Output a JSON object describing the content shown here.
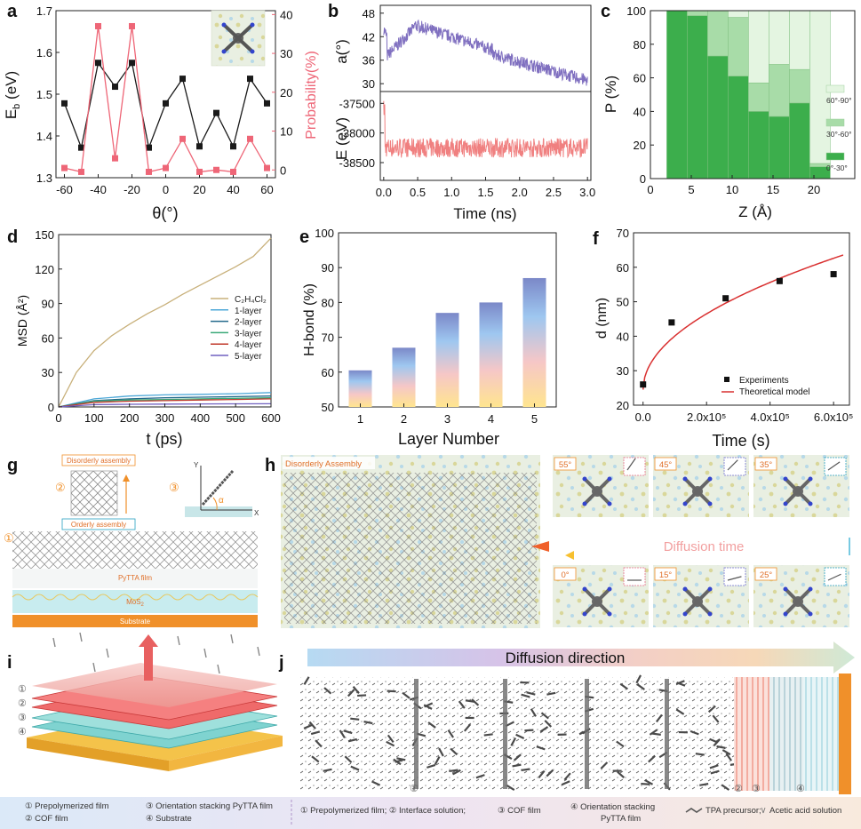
{
  "panel_labels": {
    "a": "a",
    "b": "b",
    "c": "c",
    "d": "d",
    "e": "e",
    "f": "f",
    "g": "g",
    "h": "h",
    "i": "i",
    "j": "j"
  },
  "colors": {
    "pink": "#ee6677",
    "violet": "#8070c0",
    "salmon": "#f08080",
    "green_dark": "#3cae4c",
    "green_mid": "#a8dca8",
    "green_light": "#e4f5e1",
    "orange": "#f0902a",
    "blue_box": "#26a0c0"
  },
  "chart_data": [
    {
      "id": "a",
      "type": "line",
      "xlabel": "θ(°)",
      "ylabel_left_base": "E",
      "ylabel_left_sub": "b",
      "ylabel_left_unit": " (eV)",
      "ylabel_right": "Probability(%)",
      "xlim": [
        -65,
        65
      ],
      "ylim": [
        1.3,
        1.7
      ],
      "y2lim": [
        -2,
        41
      ],
      "xticks": [
        "-60",
        "-40",
        "-20",
        "0",
        "20",
        "40",
        "60"
      ],
      "yticks": [
        "1.3",
        "1.4",
        "1.5",
        "1.6",
        "1.7"
      ],
      "y2ticks": [
        "0",
        "10",
        "20",
        "30",
        "40"
      ],
      "series": [
        {
          "name": "Eb",
          "axis": "left",
          "color": "#1a1a1a",
          "x": [
            -60,
            -50,
            -40,
            -30,
            -20,
            -10,
            0,
            10,
            20,
            30,
            40,
            50,
            60
          ],
          "y": [
            1.478,
            1.372,
            1.575,
            1.518,
            1.575,
            1.372,
            1.478,
            1.537,
            1.375,
            1.455,
            1.375,
            1.537,
            1.478
          ]
        },
        {
          "name": "Probability",
          "axis": "right",
          "color": "#ee6677",
          "x": [
            -60,
            -50,
            -40,
            -30,
            -20,
            -10,
            0,
            10,
            20,
            30,
            40,
            50,
            60
          ],
          "y": [
            0.5,
            -0.5,
            37,
            3,
            37,
            -0.5,
            0.5,
            8,
            -0.5,
            0,
            -0.5,
            8,
            0.5
          ]
        }
      ]
    },
    {
      "id": "b",
      "type": "line",
      "xlabel": "Time (ns)",
      "xlim": [
        -0.05,
        3.05
      ],
      "xticks": [
        "0.0",
        "0.5",
        "1.0",
        "1.5",
        "2.0",
        "2.5",
        "3.0"
      ],
      "top": {
        "ylabel": "a(°)",
        "ylim": [
          28,
          50
        ],
        "yticks": [
          "30",
          "36",
          "42",
          "48"
        ],
        "color": "#8070c0"
      },
      "bottom": {
        "ylabel": "E (eV)",
        "ylim": [
          -38800,
          -37300
        ],
        "yticks": [
          "-38500",
          "-38000",
          "-37500"
        ],
        "color": "#f08080"
      }
    },
    {
      "id": "c",
      "type": "bar",
      "xlabel": "Z (Å)",
      "ylabel": "P (%)",
      "xlim": [
        0,
        25
      ],
      "ylim": [
        0,
        100
      ],
      "xticks": [
        "0",
        "5",
        "10",
        "15",
        "20"
      ],
      "yticks": [
        "0",
        "20",
        "40",
        "60",
        "80",
        "100"
      ],
      "bins": [
        2,
        4.5,
        7,
        9.5,
        12,
        14.5,
        17,
        19.5
      ],
      "series": [
        {
          "name": "0°-30°",
          "values": [
            100,
            97,
            73,
            61,
            40,
            37,
            45,
            7
          ]
        },
        {
          "name": "30°-60°",
          "values": [
            0,
            3,
            27,
            35,
            17,
            31,
            20,
            2
          ]
        },
        {
          "name": "60°-90°",
          "values": [
            0,
            0,
            0,
            4,
            43,
            32,
            35,
            91
          ]
        }
      ],
      "legend": [
        "60°-90°",
        "30°-60°",
        "0°-30°"
      ]
    },
    {
      "id": "d",
      "type": "line",
      "xlabel": "t (ps)",
      "ylabel": "MSD (Å²)",
      "xlim": [
        0,
        600
      ],
      "ylim": [
        0,
        150
      ],
      "xticks": [
        "0",
        "100",
        "200",
        "300",
        "400",
        "500",
        "600"
      ],
      "yticks": [
        "0",
        "30",
        "60",
        "90",
        "120",
        "150"
      ],
      "series": [
        {
          "name": "C₂H₄Cl₂",
          "color": "#c8b07a",
          "x": [
            0,
            50,
            100,
            150,
            200,
            250,
            300,
            350,
            400,
            450,
            500,
            550,
            600
          ],
          "y": [
            0,
            30,
            49,
            62,
            72,
            81,
            89,
            98,
            106,
            114,
            122,
            131,
            147
          ]
        },
        {
          "name": "1-layer",
          "color": "#4ea8d8",
          "x": [
            0,
            100,
            200,
            300,
            400,
            500,
            600
          ],
          "y": [
            0,
            7,
            9.5,
            10.5,
            11,
            11.5,
            12.5
          ]
        },
        {
          "name": "2-layer",
          "color": "#246a8c",
          "x": [
            0,
            100,
            200,
            300,
            400,
            500,
            600
          ],
          "y": [
            0,
            5.5,
            7,
            8,
            8.5,
            9,
            9.5
          ]
        },
        {
          "name": "3-layer",
          "color": "#3aa878",
          "x": [
            0,
            100,
            200,
            300,
            400,
            500,
            600
          ],
          "y": [
            0,
            5,
            6,
            6.5,
            7,
            7.5,
            8
          ]
        },
        {
          "name": "4-layer",
          "color": "#c0392b",
          "x": [
            0,
            100,
            200,
            300,
            400,
            500,
            600
          ],
          "y": [
            0,
            4,
            5,
            5.5,
            6,
            6.5,
            7
          ]
        },
        {
          "name": "5-layer",
          "color": "#7060c0",
          "x": [
            0,
            100,
            200,
            300,
            400,
            500,
            600
          ],
          "y": [
            0,
            2,
            2.3,
            2.5,
            2.6,
            2.7,
            2.8
          ]
        }
      ]
    },
    {
      "id": "e",
      "type": "bar",
      "xlabel": "Layer Number",
      "ylabel": "H-bond (%)",
      "ylim": [
        50,
        100
      ],
      "categories": [
        "1",
        "2",
        "3",
        "4",
        "5"
      ],
      "values": [
        60.5,
        67,
        77,
        80,
        87
      ],
      "yticks": [
        "50",
        "60",
        "70",
        "80",
        "90",
        "100"
      ]
    },
    {
      "id": "f",
      "type": "scatter",
      "xlabel": "Time (s)",
      "ylabel": "d (nm)",
      "xlim": [
        -30000,
        650000
      ],
      "ylim": [
        20,
        70
      ],
      "xticks": [
        "0.0",
        "2.0x10⁵",
        "4.0x10⁵",
        "6.0x10⁵"
      ],
      "yticks": [
        "20",
        "30",
        "40",
        "50",
        "60",
        "70"
      ],
      "points": {
        "name": "Experiments",
        "x": [
          0,
          90000,
          260000,
          430000,
          600000
        ],
        "y": [
          26,
          44,
          51,
          56,
          58
        ]
      },
      "model": {
        "name": "Theoretical model",
        "y0": 24.5,
        "k": 0.0492,
        "x_end": 630000
      }
    }
  ],
  "panel_g": {
    "disorder": "Disorderly assembly",
    "order": "Orderly assembly",
    "n1": "①",
    "n2": "②",
    "n3": "③",
    "film": "PyTTA film",
    "mos2_base": "MoS",
    "mos2_sub": "2",
    "substrate": "Substrate",
    "axis_y": "Y",
    "axis_x": "X",
    "angle": "α"
  },
  "panel_h": {
    "disorder": "Disorderly Assembly",
    "diffusion": "Diffusion time",
    "angles_top": [
      "55°",
      "45°",
      "35°"
    ],
    "angles_bottom": [
      "0°",
      "15°",
      "25°"
    ]
  },
  "panel_i": {
    "nums": [
      "①",
      "②",
      "③",
      "④"
    ]
  },
  "panel_j": {
    "direction": "Diffusion direction",
    "markers": [
      "①",
      "②",
      "③",
      "④"
    ]
  },
  "legend_i": {
    "l1": "① Prepolymerized film",
    "l2": "② COF film",
    "l3": "③ Orientation stacking PyTTA film",
    "l4": "④ Substrate"
  },
  "legend_j": {
    "l1": "① Prepolymerized film; ② Interface solution;",
    "l2": "③ COF film",
    "l3a": "④ Orientation stacking",
    "l3b": "PyTTA film",
    "l4": "TPA precursor;",
    "l5": "Acetic acid solution"
  }
}
